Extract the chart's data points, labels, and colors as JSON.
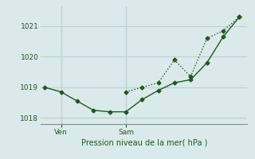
{
  "background_color": "#daeaea",
  "grid_color": "#b8d0d0",
  "line_color": "#1a5c1a",
  "title": "Pression niveau de la mer( hPa )",
  "ylabel_ticks": [
    1018,
    1019,
    1020,
    1021
  ],
  "xtick_labels": [
    "Ven",
    "Sam"
  ],
  "xtick_positions": [
    2,
    10
  ],
  "line1_x": [
    0,
    2,
    4,
    6,
    8,
    10,
    12,
    14,
    16,
    18,
    20,
    22,
    24
  ],
  "line1_y": [
    1019.0,
    1018.85,
    1018.55,
    1018.25,
    1018.2,
    1018.2,
    1018.6,
    1018.9,
    1019.15,
    1019.25,
    1019.8,
    1020.65,
    1021.3
  ],
  "line2_x": [
    10,
    12,
    14,
    16,
    18,
    20,
    22,
    24
  ],
  "line2_y": [
    1018.85,
    1019.0,
    1019.15,
    1019.9,
    1019.35,
    1020.6,
    1020.85,
    1021.3
  ],
  "ylim": [
    1017.8,
    1021.65
  ],
  "xlim": [
    -0.5,
    25
  ]
}
